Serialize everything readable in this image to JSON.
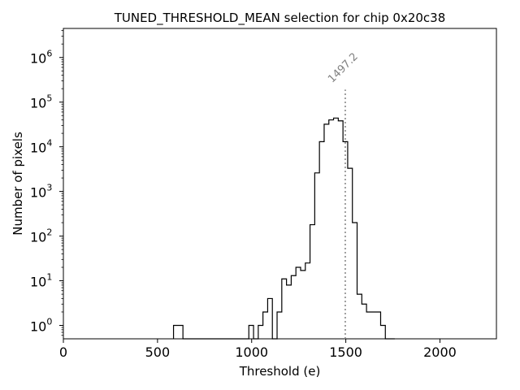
{
  "chart_data": {
    "type": "histogram-step",
    "title": "TUNED_THRESHOLD_MEAN selection for chip 0x20c38",
    "xlabel": "Threshold (e)",
    "ylabel": "Number of pixels",
    "xlim": [
      0,
      2300
    ],
    "ylim_log10": [
      -0.3,
      6.65
    ],
    "yscale": "log",
    "x_ticks": [
      {
        "value": 0,
        "label": "0"
      },
      {
        "value": 500,
        "label": "500"
      },
      {
        "value": 1000,
        "label": "1000"
      },
      {
        "value": 1500,
        "label": "1500"
      },
      {
        "value": 2000,
        "label": "2000"
      }
    ],
    "y_ticks": [
      {
        "value": 1,
        "mantissa": "10",
        "exponent": "0"
      },
      {
        "value": 10,
        "mantissa": "10",
        "exponent": "1"
      },
      {
        "value": 100,
        "mantissa": "10",
        "exponent": "2"
      },
      {
        "value": 1000,
        "mantissa": "10",
        "exponent": "3"
      },
      {
        "value": 10000,
        "mantissa": "10",
        "exponent": "4"
      },
      {
        "value": 100000,
        "mantissa": "10",
        "exponent": "5"
      },
      {
        "value": 1000000,
        "mantissa": "10",
        "exponent": "6"
      }
    ],
    "bin_edges": [
      585,
      610,
      635,
      660,
      685,
      710,
      735,
      760,
      785,
      810,
      835,
      860,
      885,
      910,
      935,
      960,
      985,
      1010,
      1035,
      1060,
      1085,
      1110,
      1135,
      1160,
      1185,
      1210,
      1235,
      1260,
      1285,
      1310,
      1335,
      1360,
      1385,
      1410,
      1435,
      1460,
      1485,
      1510,
      1535,
      1560,
      1585,
      1610,
      1635,
      1660,
      1685,
      1710,
      1735,
      1760
    ],
    "counts": [
      1,
      1,
      0,
      0,
      0,
      0,
      0,
      0,
      0,
      0,
      0,
      0,
      0,
      0,
      0,
      0,
      1,
      0,
      1,
      2,
      4,
      0,
      2,
      11,
      8,
      13,
      20,
      17,
      25,
      180,
      2600,
      13000,
      32000,
      40000,
      44000,
      38000,
      13000,
      3300,
      200,
      5,
      3,
      2,
      2,
      2,
      1,
      0,
      0
    ],
    "marker": {
      "value": 1497.2,
      "label": "1497.2",
      "line_top_log10": 5.28
    }
  }
}
